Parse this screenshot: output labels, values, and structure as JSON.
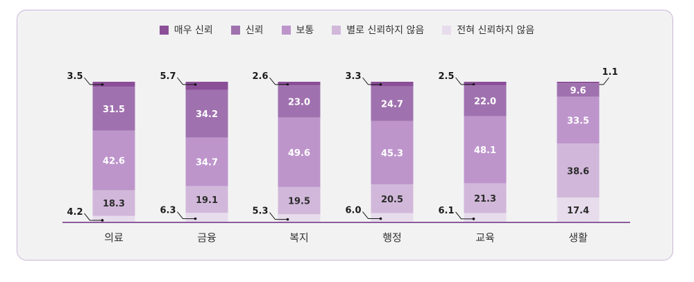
{
  "chart_data": {
    "type": "bar",
    "stacked": true,
    "legend_position": "top",
    "categories": [
      "의료",
      "금융",
      "복지",
      "행정",
      "교육",
      "생활"
    ],
    "series": [
      {
        "name": "매우 신뢰",
        "color": "#8b4f98",
        "values": [
          3.5,
          5.7,
          2.6,
          3.3,
          2.5,
          1.1
        ]
      },
      {
        "name": "신뢰",
        "color": "#a071af",
        "values": [
          31.5,
          34.2,
          23.0,
          24.7,
          22.0,
          9.6
        ]
      },
      {
        "name": "보통",
        "color": "#bd95cb",
        "values": [
          42.6,
          34.7,
          49.6,
          45.3,
          48.1,
          33.5
        ]
      },
      {
        "name": "별로 신뢰하지 않음",
        "color": "#d1b8da",
        "values": [
          18.3,
          19.1,
          19.5,
          20.5,
          21.3,
          38.6
        ]
      },
      {
        "name": "전혀 신뢰하지 않음",
        "color": "#e7dcec",
        "values": [
          4.2,
          6.3,
          5.3,
          6.0,
          6.1,
          17.4
        ]
      }
    ],
    "ylim": [
      0,
      100
    ],
    "grid": false
  }
}
